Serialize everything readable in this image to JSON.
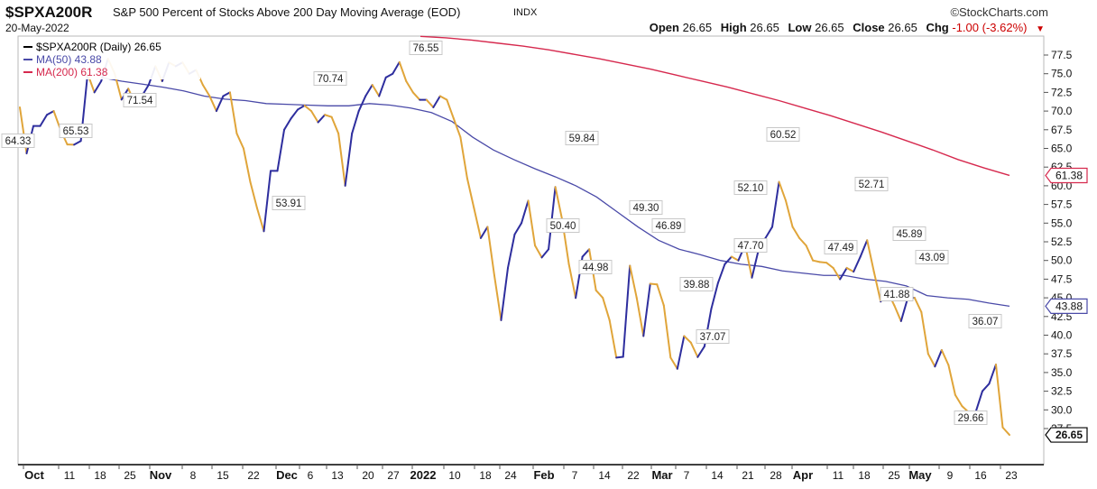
{
  "header": {
    "symbol": "$SPXA200R",
    "description": "S&P 500 Percent of Stocks Above 200 Day Moving Average (EOD)",
    "exchange": "INDX",
    "date": "20-May-2022",
    "brand": "©StockCharts.com",
    "open_label": "Open",
    "open": "26.65",
    "high_label": "High",
    "high": "26.65",
    "low_label": "Low",
    "low": "26.65",
    "close_label": "Close",
    "close": "26.65",
    "chg_label": "Chg",
    "chg": "-1.00 (-3.62%)"
  },
  "colors": {
    "price_up": "#2e2e9e",
    "price_down": "#e0a53a",
    "ma50": "#4a4aa8",
    "ma200": "#d6294e",
    "grid": "#ececec",
    "axis": "#000000"
  },
  "chart_data": {
    "type": "line",
    "ylim": [
      25,
      80
    ],
    "y_ticks": [
      "27.5",
      "30.0",
      "32.5",
      "35.0",
      "37.5",
      "40.0",
      "42.5",
      "45.0",
      "47.5",
      "50.0",
      "52.5",
      "55.0",
      "57.5",
      "60.0",
      "62.5",
      "65.0",
      "67.5",
      "70.0",
      "72.5",
      "75.0",
      "77.5"
    ],
    "x_axis_labels": [
      "Oct",
      "11",
      "18",
      "25",
      "Nov",
      "8",
      "15",
      "22",
      "Dec",
      "6",
      "13",
      "20",
      "27",
      "2022",
      "10",
      "18",
      "24",
      "Feb",
      "7",
      "14",
      "22",
      "Mar",
      "7",
      "14",
      "21",
      "28",
      "Apr",
      "11",
      "18",
      "25",
      "May",
      "9",
      "16",
      "23"
    ],
    "x_axis_bold": [
      "Oct",
      "Nov",
      "Dec",
      "2022",
      "Feb",
      "Mar",
      "Apr",
      "May"
    ],
    "series": [
      {
        "name": "$SPXA200R (Daily) 26.65",
        "values": [
          70.5,
          64.33,
          68.0,
          68.0,
          69.5,
          70.0,
          67.5,
          65.53,
          65.5,
          66.0,
          75.0,
          72.5,
          74.0,
          77.0,
          75.0,
          71.54,
          73.0,
          71.0,
          72.0,
          73.5,
          76.0,
          74.0,
          76.5,
          76.0,
          76.5,
          75.0,
          75.5,
          73.5,
          72.0,
          70.0,
          72.0,
          72.5,
          67.0,
          65.0,
          60.5,
          57.0,
          53.91,
          62.0,
          62.0,
          67.5,
          69.0,
          70.2,
          70.74,
          70.0,
          68.5,
          69.5,
          69.2,
          67.0,
          60.0,
          67.0,
          70.0,
          72.0,
          73.5,
          72.0,
          74.5,
          75.0,
          76.55,
          74.0,
          72.5,
          71.5,
          71.5,
          70.5,
          72.0,
          71.5,
          69.0,
          66.5,
          61.0,
          57.0,
          53.0,
          54.5,
          48.0,
          42.0,
          49.0,
          53.5,
          55.0,
          58.0,
          52.0,
          50.4,
          51.5,
          59.84,
          55.5,
          49.5,
          44.98,
          50.5,
          51.5,
          46.0,
          45.0,
          42.0,
          37.0,
          37.1,
          49.3,
          45.0,
          39.88,
          46.89,
          46.8,
          44.0,
          37.0,
          35.5,
          39.88,
          39.0,
          37.07,
          38.5,
          43.5,
          47.0,
          49.5,
          50.5,
          50.0,
          52.1,
          47.7,
          51.5,
          53.0,
          54.5,
          60.52,
          58.0,
          54.5,
          53.0,
          52.0,
          50.0,
          49.8,
          49.7,
          49.0,
          47.49,
          49.0,
          48.5,
          50.5,
          52.71,
          48.5,
          44.5,
          45.89,
          44.0,
          41.88,
          45.0,
          45.0,
          43.09,
          37.5,
          35.8,
          38.0,
          36.0,
          32.0,
          30.5,
          29.66,
          29.66,
          32.5,
          33.5,
          36.07,
          27.65,
          26.65
        ]
      },
      {
        "name": "MA(50) 43.88",
        "values": [
          74.5,
          74.0,
          73.6,
          73.2,
          72.7,
          72.0,
          71.6,
          71.4,
          71.0,
          70.9,
          70.8,
          70.7,
          70.7,
          71.0,
          70.8,
          70.4,
          69.8,
          68.6,
          66.5,
          64.8,
          63.5,
          62.3,
          61.2,
          60.0,
          58.5,
          56.5,
          54.5,
          52.7,
          51.5,
          50.8,
          50.0,
          49.5,
          49.2,
          48.6,
          48.3,
          48.0,
          48.0,
          47.5,
          47.2,
          46.6,
          45.3,
          45.0,
          44.8,
          44.3,
          43.88
        ]
      },
      {
        "name": "MA(200) 61.38",
        "values": [
          80.0,
          79.8,
          79.5,
          79.1,
          78.7,
          78.2,
          77.6,
          77.0,
          76.3,
          75.6,
          74.8,
          74.0,
          73.2,
          72.3,
          71.4,
          70.4,
          69.4,
          68.3,
          67.2,
          66.0,
          64.8,
          63.5,
          62.4,
          61.38
        ]
      }
    ],
    "data_labels": [
      "64.33",
      "65.53",
      "71.54",
      "70.74",
      "53.91",
      "76.55",
      "59.84",
      "50.40",
      "44.98",
      "49.30",
      "46.89",
      "39.88",
      "37.07",
      "52.10",
      "47.70",
      "60.52",
      "47.49",
      "52.71",
      "45.89",
      "41.88",
      "43.09",
      "36.07",
      "29.66"
    ],
    "last_value_tags": [
      "61.38",
      "43.88",
      "26.65"
    ],
    "legend_placement": "top-left",
    "grid": false
  }
}
